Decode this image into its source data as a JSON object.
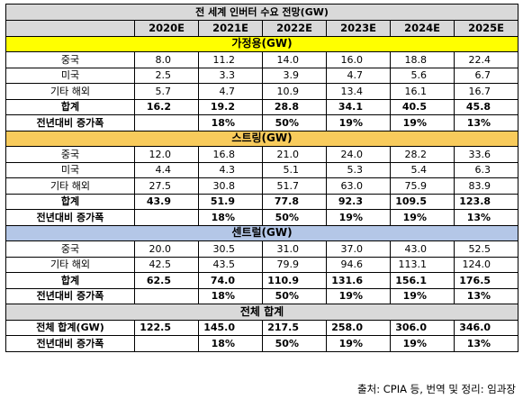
{
  "title": "전 세계 인버터 수요 전망(GW)",
  "years": [
    "2020E",
    "2021E",
    "2022E",
    "2023E",
    "2024E",
    "2025E"
  ],
  "sections": [
    {
      "name": "가정용(GW)",
      "rows": [
        {
          "label": "중국",
          "values": [
            "8.0",
            "11.2",
            "14.0",
            "16.0",
            "18.8",
            "22.4"
          ]
        },
        {
          "label": "미국",
          "values": [
            "2.5",
            "3.3",
            "3.9",
            "4.7",
            "5.6",
            "6.7"
          ]
        },
        {
          "label": "기타 해외",
          "values": [
            "5.7",
            "4.7",
            "10.9",
            "13.4",
            "16.1",
            "16.7"
          ]
        }
      ],
      "sum": {
        "label": "합계",
        "values": [
          "16.2",
          "19.2",
          "28.8",
          "34.1",
          "40.5",
          "45.8"
        ]
      },
      "growth": {
        "label": "전년대비 증가폭",
        "values": [
          "",
          "18%",
          "50%",
          "19%",
          "19%",
          "13%"
        ]
      }
    },
    {
      "name": "스트링(GW)",
      "rows": [
        {
          "label": "중국",
          "values": [
            "12.0",
            "16.8",
            "21.0",
            "24.0",
            "28.2",
            "33.6"
          ]
        },
        {
          "label": "미국",
          "values": [
            "4.4",
            "4.3",
            "5.1",
            "5.3",
            "5.4",
            "6.3"
          ]
        },
        {
          "label": "기타 해외",
          "values": [
            "27.5",
            "30.8",
            "51.7",
            "63.0",
            "75.9",
            "83.9"
          ]
        }
      ],
      "sum": {
        "label": "합계",
        "values": [
          "43.9",
          "51.9",
          "77.8",
          "92.3",
          "109.5",
          "123.8"
        ]
      },
      "growth": {
        "label": "전년대비 증가폭",
        "values": [
          "",
          "18%",
          "50%",
          "19%",
          "19%",
          "13%"
        ]
      }
    },
    {
      "name": "센트럴(GW)",
      "rows": [
        {
          "label": "중국",
          "values": [
            "20.0",
            "30.5",
            "31.0",
            "37.0",
            "43.0",
            "52.5"
          ]
        },
        {
          "label": "기타 해외",
          "values": [
            "42.5",
            "43.5",
            "79.9",
            "94.6",
            "113.1",
            "124.0"
          ]
        }
      ],
      "sum": {
        "label": "합계",
        "values": [
          "62.5",
          "74.0",
          "110.9",
          "131.6",
          "156.1",
          "176.5"
        ]
      },
      "growth": {
        "label": "전년대비 증가폭",
        "values": [
          "",
          "18%",
          "50%",
          "19%",
          "19%",
          "13%"
        ]
      }
    }
  ],
  "total": {
    "name": "전체 합계",
    "sum": {
      "label": "전체 합계(GW)",
      "values": [
        "122.5",
        "145.0",
        "217.5",
        "258.0",
        "306.0",
        "346.0"
      ]
    },
    "growth": {
      "label": "전년대비 증가폭",
      "values": [
        "",
        "18%",
        "50%",
        "19%",
        "19%",
        "13%"
      ]
    }
  },
  "source": "출처: CPIA 등, 번역 및 정리: 임과장",
  "colors": {
    "header_gray": "#d9d9d9",
    "residential": "#ffff00",
    "string": "#f8cb5c",
    "central": "#b4c7e7"
  }
}
